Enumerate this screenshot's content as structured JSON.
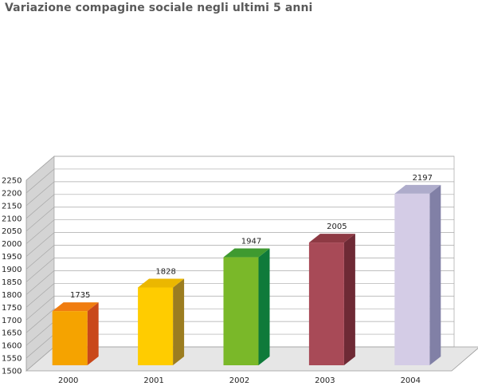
{
  "chart_data": {
    "type": "bar",
    "title": "Variazione compagine sociale negli ultimi 5 anni",
    "categories": [
      "2000",
      "2001",
      "2002",
      "2003",
      "2004"
    ],
    "values": [
      1735,
      1828,
      1947,
      2005,
      2197
    ],
    "ylim": [
      1500,
      2250
    ],
    "ytick_step": 50,
    "grid": true,
    "legend": "none",
    "three_d": true,
    "colors": [
      {
        "front": "#f5a300",
        "side": "#c9481a",
        "top": "#f07d10"
      },
      {
        "front": "#ffcc00",
        "side": "#9c7d20",
        "top": "#ebb700"
      },
      {
        "front": "#7ab829",
        "side": "#0f7a3a",
        "top": "#3f9a30"
      },
      {
        "front": "#a84a57",
        "side": "#6e2a35",
        "top": "#8e3a44"
      },
      {
        "front": "#d4cce6",
        "side": "#8180a6",
        "top": "#aeaccb"
      }
    ]
  }
}
